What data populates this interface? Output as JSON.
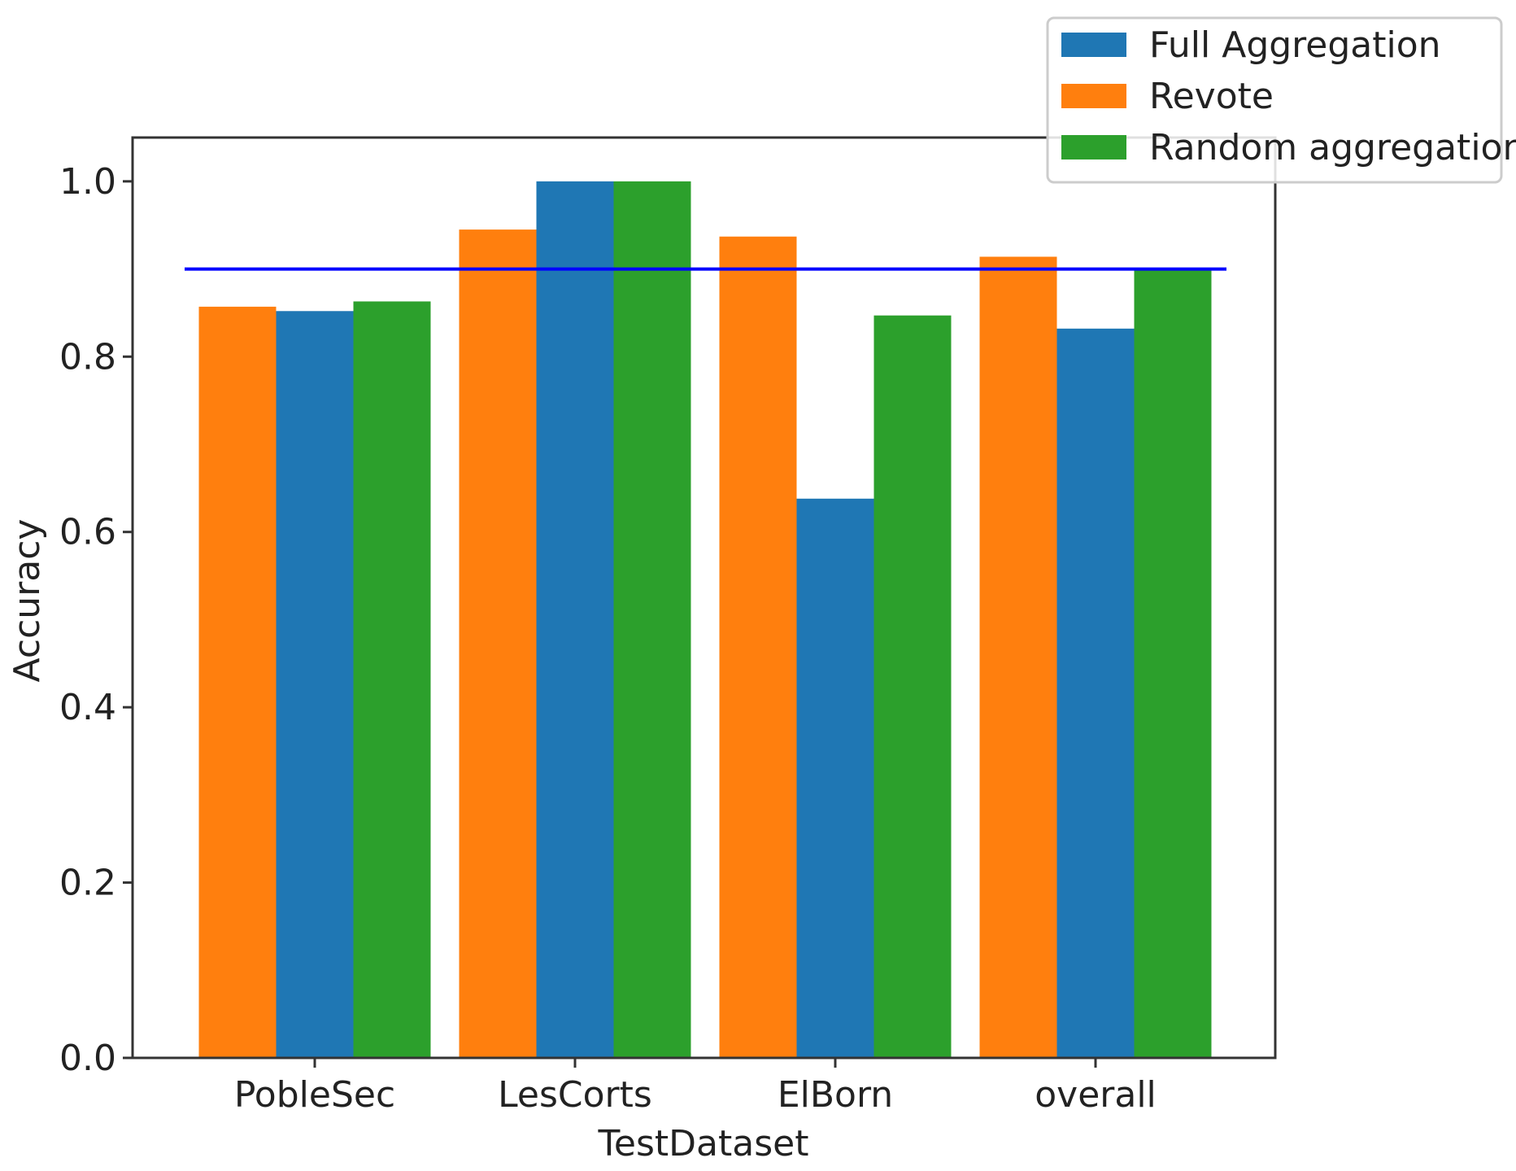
{
  "chart_data": {
    "type": "bar",
    "categories": [
      "PobleSec",
      "LesCorts",
      "ElBorn",
      "overall"
    ],
    "series": [
      {
        "name": "Revote",
        "color": "#ff7f0e",
        "values": [
          0.857,
          0.945,
          0.937,
          0.914
        ]
      },
      {
        "name": "Full Aggregation",
        "color": "#1f77b4",
        "values": [
          0.852,
          1.0,
          0.638,
          0.832
        ]
      },
      {
        "name": "Random aggregation",
        "color": "#2ca02c",
        "values": [
          0.863,
          1.0,
          0.847,
          0.899
        ]
      }
    ],
    "legend_order": [
      "Full Aggregation",
      "Revote",
      "Random aggregation"
    ],
    "legend_position": "top-right",
    "reference_line": {
      "value": 0.9,
      "color": "#0000ff"
    },
    "xlabel": "TestDataset",
    "ylabel": "Accuracy",
    "ylim": [
      0,
      1.05
    ],
    "yticks": [
      "0.0",
      "0.2",
      "0.4",
      "0.6",
      "0.8",
      "1.0"
    ],
    "grid": false
  }
}
